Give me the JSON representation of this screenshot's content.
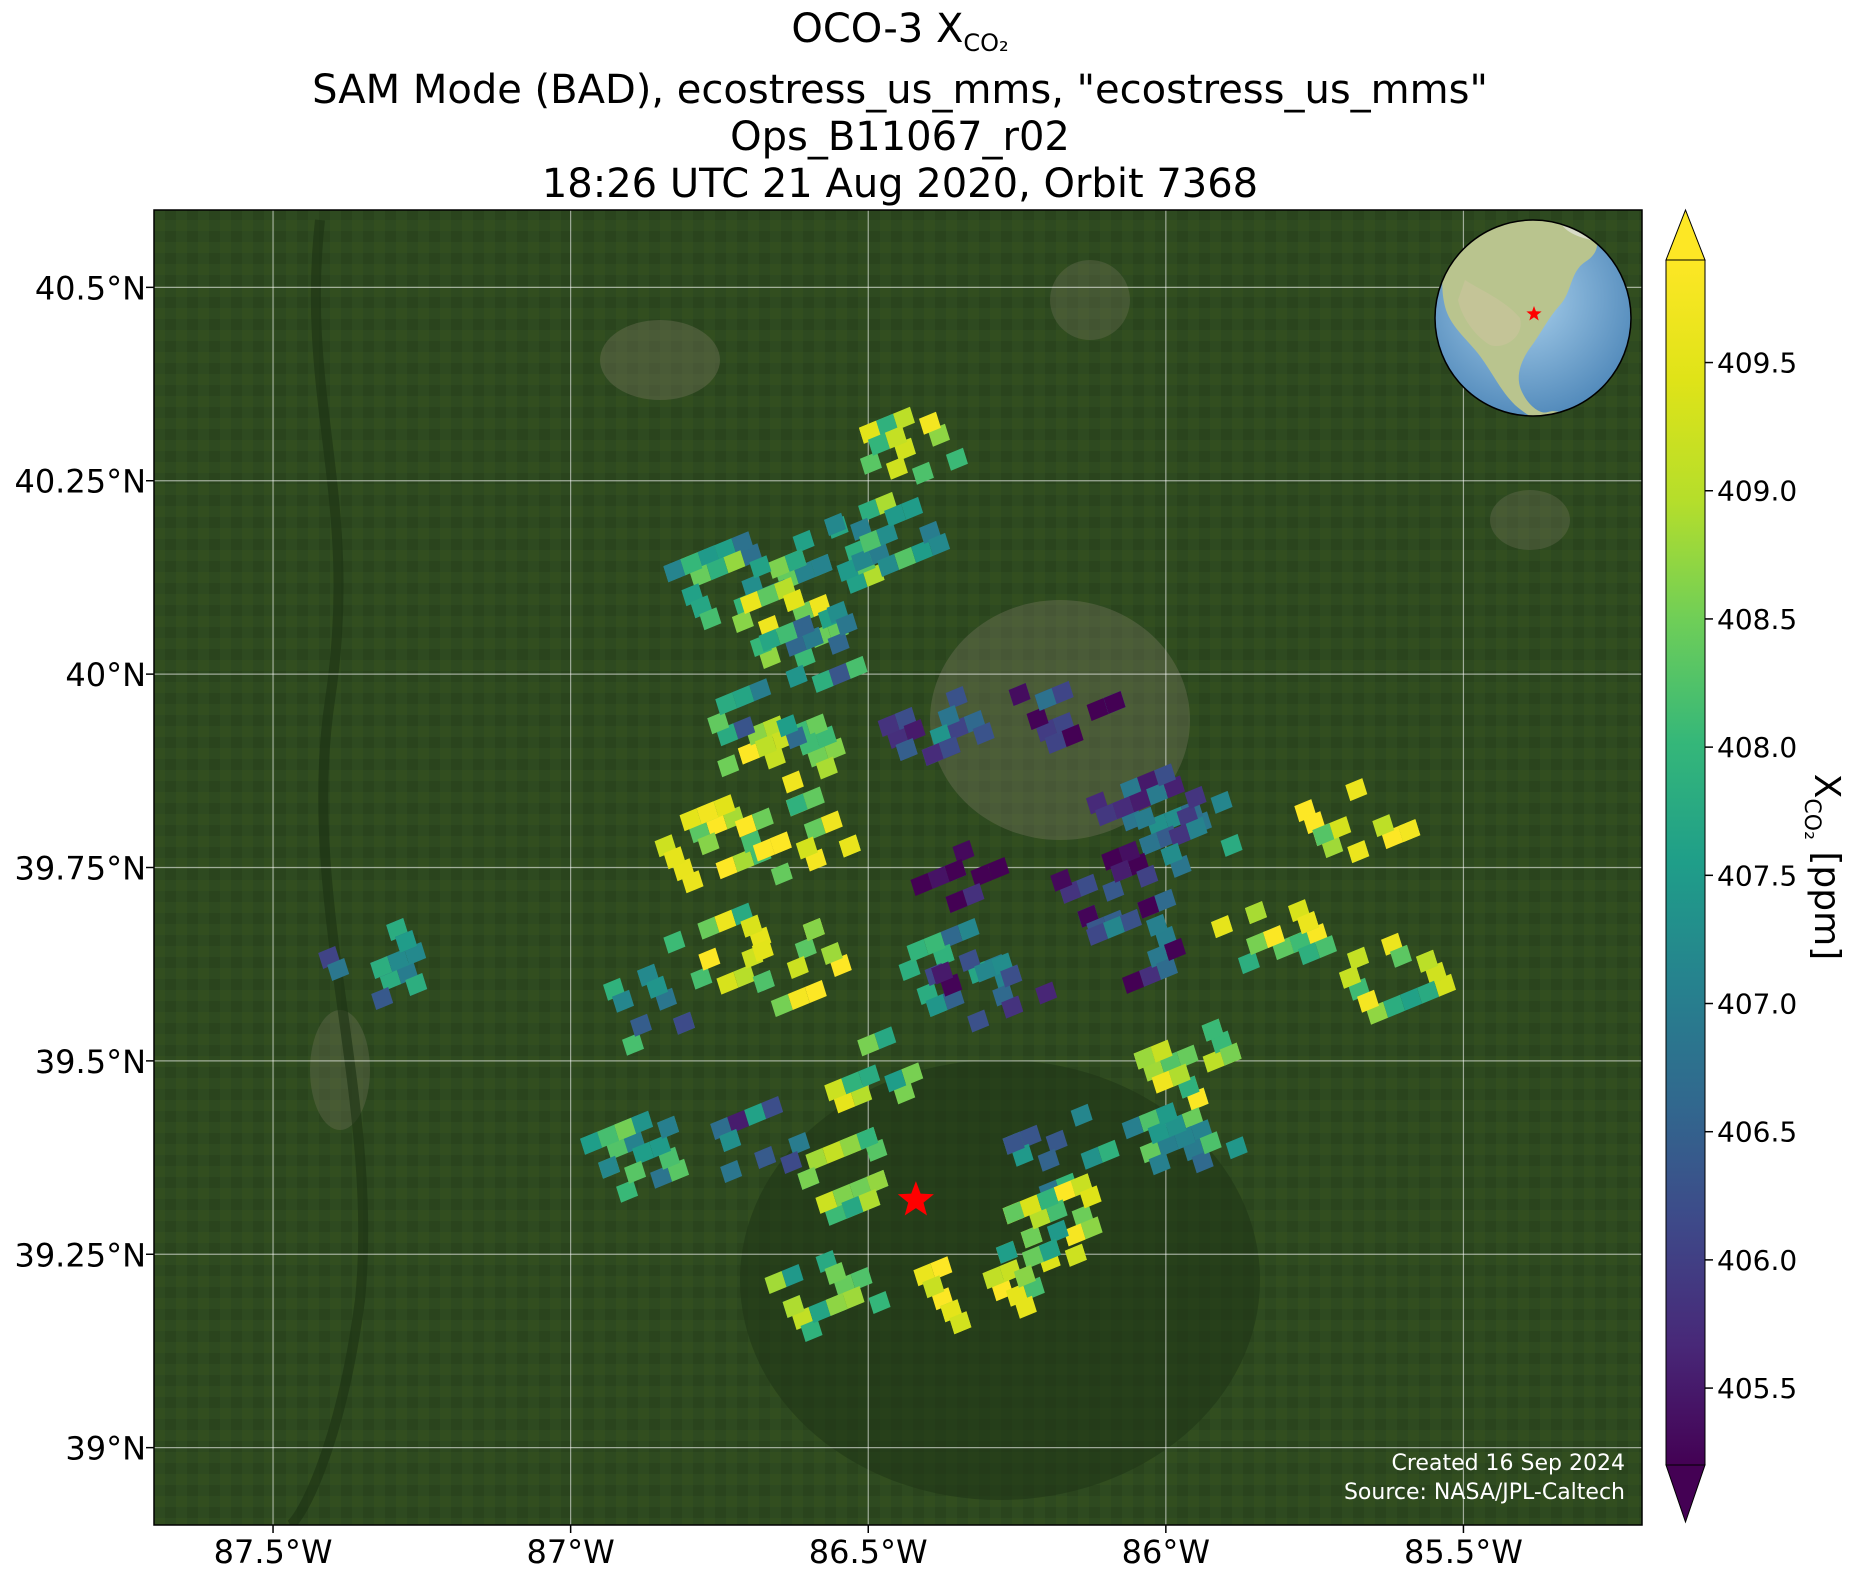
{
  "title": {
    "line1_prefix": "OCO-3 X",
    "line1_sub": "CO₂",
    "line2": "SAM Mode (BAD), ecostress_us_mms, \"ecostress_us_mms\"",
    "line3": "Ops_B11067_r02",
    "line4": "18:26 UTC 21 Aug 2020, Orbit 7368"
  },
  "map": {
    "lon_range": [
      -87.7,
      -85.2
    ],
    "lat_range": [
      38.9,
      40.6
    ],
    "lon_ticks": [
      {
        "value": -87.5,
        "label": "87.5°W"
      },
      {
        "value": -87.0,
        "label": "87°W"
      },
      {
        "value": -86.5,
        "label": "86.5°W"
      },
      {
        "value": -86.0,
        "label": "86°W"
      },
      {
        "value": -85.5,
        "label": "85.5°W"
      }
    ],
    "lat_ticks": [
      {
        "value": 40.5,
        "label": "40.5°N"
      },
      {
        "value": 40.25,
        "label": "40.25°N"
      },
      {
        "value": 40.0,
        "label": "40°N"
      },
      {
        "value": 39.75,
        "label": "39.75°N"
      },
      {
        "value": 39.5,
        "label": "39.5°N"
      },
      {
        "value": 39.25,
        "label": "39.25°N"
      },
      {
        "value": 39.0,
        "label": "39°N"
      }
    ],
    "basemap_color": "#2e4a20",
    "target_marker": {
      "lon": -86.42,
      "lat": 39.32,
      "color": "#ff0000"
    },
    "credit_line1": "Created 16 Sep 2024",
    "credit_line2": "Source: NASA/JPL-Caltech"
  },
  "colorbar": {
    "colormap": "viridis",
    "min": 405.2,
    "max": 409.9,
    "extend": "both",
    "ticks": [
      "405.5",
      "406.0",
      "406.5",
      "407.0",
      "407.5",
      "408.0",
      "408.5",
      "409.0",
      "409.5"
    ],
    "label_prefix": "X",
    "label_sub": "CO₂",
    "label_suffix": " [ppm]"
  },
  "inset_globe": {
    "center_region": "North America",
    "marker_color": "#ff0000"
  },
  "chart_data": {
    "type": "scatter",
    "description_unit": "ppm",
    "footprint_clusters": [
      {
        "lon": -86.44,
        "lat": 40.29,
        "xco2": 408.9
      },
      {
        "lon": -86.58,
        "lat": 40.14,
        "xco2": 408.0
      },
      {
        "lon": -86.74,
        "lat": 40.12,
        "xco2": 407.8
      },
      {
        "lon": -86.64,
        "lat": 40.07,
        "xco2": 408.6
      },
      {
        "lon": -86.58,
        "lat": 40.03,
        "xco2": 407.2
      },
      {
        "lon": -86.63,
        "lat": 39.9,
        "xco2": 409.0
      },
      {
        "lon": -86.71,
        "lat": 39.93,
        "xco2": 407.4
      },
      {
        "lon": -86.38,
        "lat": 39.92,
        "xco2": 406.6
      },
      {
        "lon": -86.16,
        "lat": 39.96,
        "xco2": 405.8
      },
      {
        "lon": -86.03,
        "lat": 39.82,
        "xco2": 406.3
      },
      {
        "lon": -85.95,
        "lat": 39.8,
        "xco2": 406.8
      },
      {
        "lon": -86.09,
        "lat": 39.72,
        "xco2": 406.0
      },
      {
        "lon": -86.03,
        "lat": 39.65,
        "xco2": 406.1
      },
      {
        "lon": -85.82,
        "lat": 39.66,
        "xco2": 408.9
      },
      {
        "lon": -86.34,
        "lat": 39.73,
        "xco2": 405.7
      },
      {
        "lon": -86.77,
        "lat": 39.78,
        "xco2": 409.2
      },
      {
        "lon": -86.62,
        "lat": 39.79,
        "xco2": 409.0
      },
      {
        "lon": -86.74,
        "lat": 39.64,
        "xco2": 408.8
      },
      {
        "lon": -86.62,
        "lat": 39.62,
        "xco2": 409.1
      },
      {
        "lon": -86.36,
        "lat": 39.62,
        "xco2": 407.2
      },
      {
        "lon": -86.29,
        "lat": 39.6,
        "xco2": 406.2
      },
      {
        "lon": -86.5,
        "lat": 39.48,
        "xco2": 408.6
      },
      {
        "lon": -86.53,
        "lat": 39.35,
        "xco2": 408.4
      },
      {
        "lon": -86.17,
        "lat": 39.38,
        "xco2": 407.0
      },
      {
        "lon": -86.17,
        "lat": 39.29,
        "xco2": 409.0
      },
      {
        "lon": -85.95,
        "lat": 39.49,
        "xco2": 408.8
      },
      {
        "lon": -85.97,
        "lat": 39.4,
        "xco2": 407.4
      },
      {
        "lon": -86.32,
        "lat": 39.21,
        "xco2": 409.2
      },
      {
        "lon": -86.21,
        "lat": 39.23,
        "xco2": 408.5
      },
      {
        "lon": -86.57,
        "lat": 39.2,
        "xco2": 408.2
      },
      {
        "lon": -86.87,
        "lat": 39.57,
        "xco2": 407.2
      },
      {
        "lon": -87.32,
        "lat": 39.62,
        "xco2": 407.0
      },
      {
        "lon": -85.62,
        "lat": 39.61,
        "xco2": 408.7
      },
      {
        "lon": -85.68,
        "lat": 39.81,
        "xco2": 409.3
      },
      {
        "lon": -86.69,
        "lat": 39.39,
        "xco2": 406.6
      },
      {
        "lon": -86.88,
        "lat": 39.38,
        "xco2": 407.6
      },
      {
        "lon": -86.47,
        "lat": 40.18,
        "xco2": 408.0
      }
    ]
  }
}
